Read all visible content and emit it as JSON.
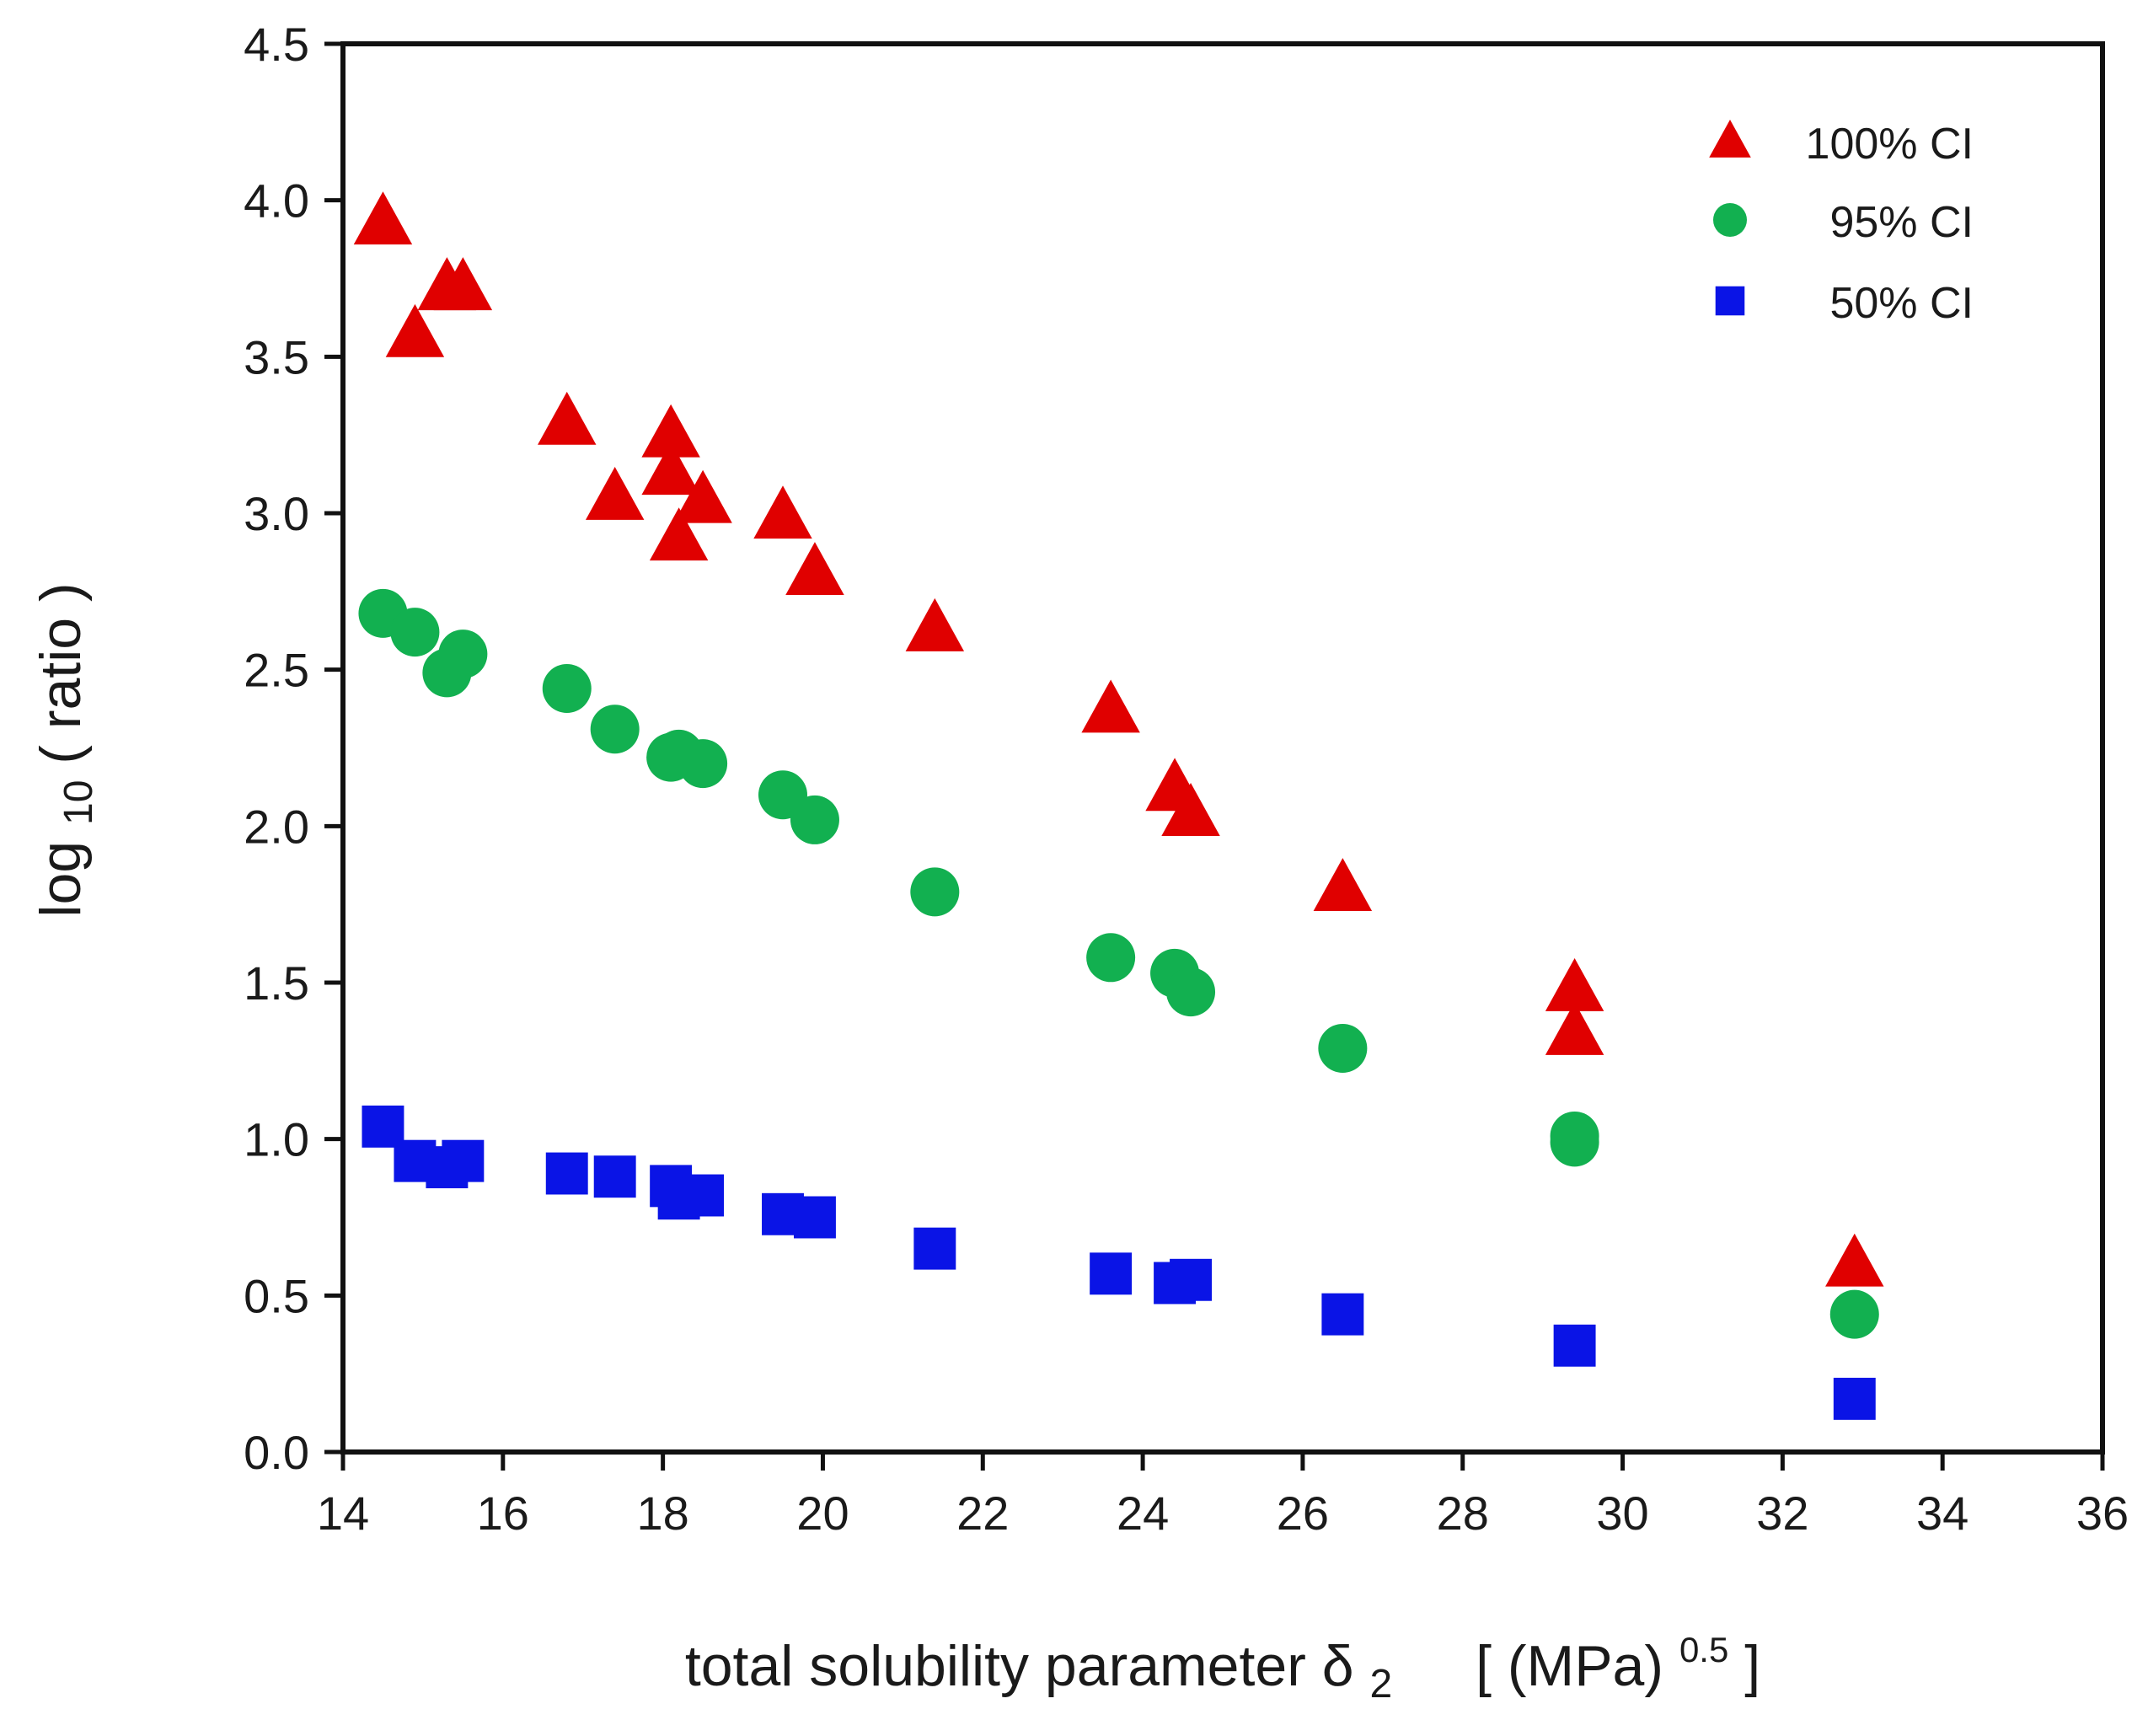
{
  "chart_data": {
    "type": "scatter",
    "title": "",
    "xlabel": {
      "main": "total solubility parameter δ",
      "subscript": "2",
      "units_open": "[ (MPa)",
      "units_sup": "0.5",
      "units_close": " ]"
    },
    "ylabel": {
      "main": "log",
      "subscript": "10",
      "rest": " ( ratio )"
    },
    "xlim": [
      14,
      36
    ],
    "ylim": [
      0.0,
      4.5
    ],
    "xticks": [
      14,
      16,
      18,
      20,
      22,
      24,
      26,
      28,
      30,
      32,
      34,
      36
    ],
    "xtick_labels": [
      "14",
      "16",
      "18",
      "20",
      "22",
      "24",
      "26",
      "28",
      "30",
      "32",
      "34",
      "36"
    ],
    "yticks": [
      0.0,
      0.5,
      1.0,
      1.5,
      2.0,
      2.5,
      3.0,
      3.5,
      4.0,
      4.5
    ],
    "ytick_labels": [
      "0.0",
      "0.5",
      "1.0",
      "1.5",
      "2.0",
      "2.5",
      "3.0",
      "3.5",
      "4.0",
      "4.5"
    ],
    "grid": false,
    "legend_position": "top-right",
    "series": [
      {
        "name": "100% CI",
        "marker": "triangle",
        "color": "#e00000",
        "points": [
          {
            "x": 14.5,
            "y": 3.93
          },
          {
            "x": 14.9,
            "y": 3.57
          },
          {
            "x": 15.3,
            "y": 3.72
          },
          {
            "x": 15.5,
            "y": 3.72
          },
          {
            "x": 16.8,
            "y": 3.29
          },
          {
            "x": 17.4,
            "y": 3.05
          },
          {
            "x": 18.1,
            "y": 3.25
          },
          {
            "x": 18.1,
            "y": 3.13
          },
          {
            "x": 18.2,
            "y": 2.92
          },
          {
            "x": 18.5,
            "y": 3.04
          },
          {
            "x": 19.5,
            "y": 2.99
          },
          {
            "x": 19.9,
            "y": 2.81
          },
          {
            "x": 21.4,
            "y": 2.63
          },
          {
            "x": 23.6,
            "y": 2.37
          },
          {
            "x": 24.4,
            "y": 2.12
          },
          {
            "x": 24.6,
            "y": 2.04
          },
          {
            "x": 26.5,
            "y": 1.8
          },
          {
            "x": 29.4,
            "y": 1.48
          },
          {
            "x": 29.4,
            "y": 1.34
          },
          {
            "x": 32.9,
            "y": 0.6
          }
        ]
      },
      {
        "name": "95% CI",
        "marker": "circle",
        "color": "#12b050",
        "points": [
          {
            "x": 14.5,
            "y": 2.68
          },
          {
            "x": 14.9,
            "y": 2.62
          },
          {
            "x": 15.3,
            "y": 2.49
          },
          {
            "x": 15.5,
            "y": 2.55
          },
          {
            "x": 16.8,
            "y": 2.44
          },
          {
            "x": 17.4,
            "y": 2.31
          },
          {
            "x": 18.1,
            "y": 2.22
          },
          {
            "x": 18.2,
            "y": 2.23
          },
          {
            "x": 18.5,
            "y": 2.2
          },
          {
            "x": 19.5,
            "y": 2.1
          },
          {
            "x": 19.9,
            "y": 2.02
          },
          {
            "x": 21.4,
            "y": 1.79
          },
          {
            "x": 23.6,
            "y": 1.58
          },
          {
            "x": 24.4,
            "y": 1.53
          },
          {
            "x": 24.6,
            "y": 1.47
          },
          {
            "x": 26.5,
            "y": 1.29
          },
          {
            "x": 29.4,
            "y": 1.01
          },
          {
            "x": 29.4,
            "y": 0.99
          },
          {
            "x": 32.9,
            "y": 0.44
          }
        ]
      },
      {
        "name": "50% CI",
        "marker": "square",
        "color": "#0a14e6",
        "points": [
          {
            "x": 14.5,
            "y": 1.04
          },
          {
            "x": 14.9,
            "y": 0.93
          },
          {
            "x": 15.3,
            "y": 0.91
          },
          {
            "x": 15.5,
            "y": 0.93
          },
          {
            "x": 16.8,
            "y": 0.89
          },
          {
            "x": 17.4,
            "y": 0.88
          },
          {
            "x": 18.1,
            "y": 0.85
          },
          {
            "x": 18.2,
            "y": 0.81
          },
          {
            "x": 18.5,
            "y": 0.82
          },
          {
            "x": 19.5,
            "y": 0.76
          },
          {
            "x": 19.9,
            "y": 0.75
          },
          {
            "x": 21.4,
            "y": 0.65
          },
          {
            "x": 23.6,
            "y": 0.57
          },
          {
            "x": 24.4,
            "y": 0.54
          },
          {
            "x": 24.6,
            "y": 0.55
          },
          {
            "x": 26.5,
            "y": 0.44
          },
          {
            "x": 29.4,
            "y": 0.34
          },
          {
            "x": 32.9,
            "y": 0.17
          }
        ]
      }
    ]
  }
}
